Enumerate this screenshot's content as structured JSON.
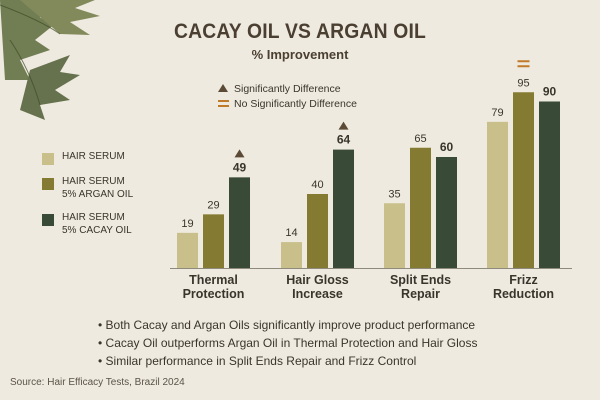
{
  "title": "CACAY OIL VS ARGAN OIL",
  "subtitle": "% Improvement",
  "significance_key": {
    "significant": "Significantly Difference",
    "not_significant": "No Significantly Difference"
  },
  "legend": [
    {
      "label": "HAIR SERUM",
      "color": "#c8bf8a"
    },
    {
      "label": "HAIR SERUM\n5% ARGAN OIL",
      "color": "#857a31"
    },
    {
      "label": "HAIR SERUM\n5% CACAY OIL",
      "color": "#394a36"
    }
  ],
  "chart_data": {
    "type": "bar",
    "title": "CACAY OIL VS ARGAN OIL",
    "subtitle": "% Improvement",
    "categories": [
      "Thermal\nProtection",
      "Hair Gloss\nIncrease",
      "Split Ends\nRepair",
      "Frizz\nReduction"
    ],
    "series": [
      {
        "name": "HAIR SERUM",
        "values": [
          19,
          14,
          35,
          79
        ],
        "color": "#c8bf8a"
      },
      {
        "name": "HAIR SERUM 5% ARGAN OIL",
        "values": [
          29,
          40,
          65,
          95
        ],
        "color": "#857a31"
      },
      {
        "name": "HAIR SERUM 5% CACAY OIL",
        "values": [
          49,
          64,
          60,
          90
        ],
        "color": "#394a36"
      }
    ],
    "markers": [
      "significant",
      "significant",
      "none",
      "not_significant"
    ],
    "ylim": [
      0,
      100
    ],
    "grid": false,
    "legend_position": "left"
  },
  "bullets": [
    "• Both Cacay and Argan Oils significantly improve product performance",
    "• Cacay Oil outperforms Argan Oil in Thermal Protection and Hair Gloss",
    "• Similar performance in Split Ends Repair and Frizz Control"
  ],
  "source": "Source:  Hair Efficacy Tests, Brazil 2024"
}
